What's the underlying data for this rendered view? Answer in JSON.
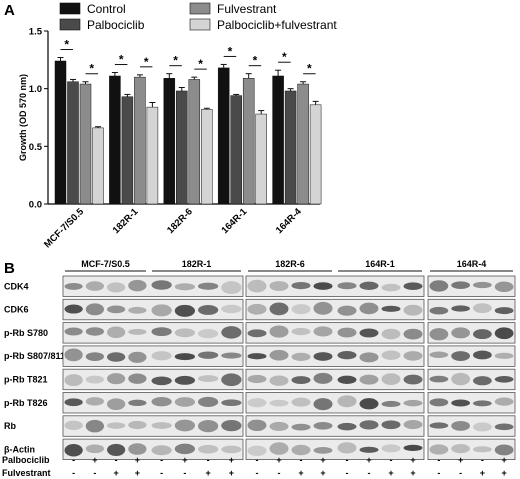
{
  "panel_a_label": "A",
  "panel_b_label": "B",
  "chart_data": {
    "type": "bar",
    "ylabel": "Growth (OD 570 nm)",
    "ylim": [
      0,
      1.5
    ],
    "yticks": [
      "0.0",
      "0.5",
      "1.0",
      "1.5"
    ],
    "categories": [
      "MCF-7/S0.5",
      "182R-1",
      "182R-6",
      "164R-1",
      "164R-4"
    ],
    "series": [
      {
        "name": "Control",
        "color": "#111111",
        "values": [
          1.24,
          1.11,
          1.09,
          1.18,
          1.11
        ],
        "errors": [
          0.03,
          0.03,
          0.04,
          0.03,
          0.05
        ]
      },
      {
        "name": "Palbociclib",
        "color": "#4a4a4a",
        "values": [
          1.06,
          0.93,
          0.98,
          0.94,
          0.98
        ],
        "errors": [
          0.02,
          0.02,
          0.03,
          0.01,
          0.02
        ]
      },
      {
        "name": "Fulvestrant",
        "color": "#8c8c8c",
        "values": [
          1.04,
          1.1,
          1.08,
          1.09,
          1.04
        ],
        "errors": [
          0.02,
          0.02,
          0.02,
          0.04,
          0.02
        ]
      },
      {
        "name": "Palbociclib+fulvestrant",
        "color": "#d4d4d4",
        "values": [
          0.66,
          0.84,
          0.82,
          0.78,
          0.86
        ],
        "errors": [
          0.01,
          0.04,
          0.01,
          0.03,
          0.03
        ]
      }
    ],
    "significance": "*",
    "legend_position": "top"
  },
  "blot": {
    "cell_lines": [
      "MCF-7/S0.5",
      "182R-1",
      "182R-6",
      "164R-1",
      "164R-4"
    ],
    "rows": [
      "CDK4",
      "CDK6",
      "p-Rb S780",
      "p-Rb  S807/811",
      "p-Rb  T821",
      "p-Rb T826",
      "Rb",
      "β-Actin"
    ],
    "treatments": [
      {
        "name": "Palbociclib",
        "signs": [
          "-",
          "+",
          "-",
          "+"
        ]
      },
      {
        "name": "Fulvestrant",
        "signs": [
          "-",
          "-",
          "+",
          "+"
        ]
      }
    ]
  }
}
